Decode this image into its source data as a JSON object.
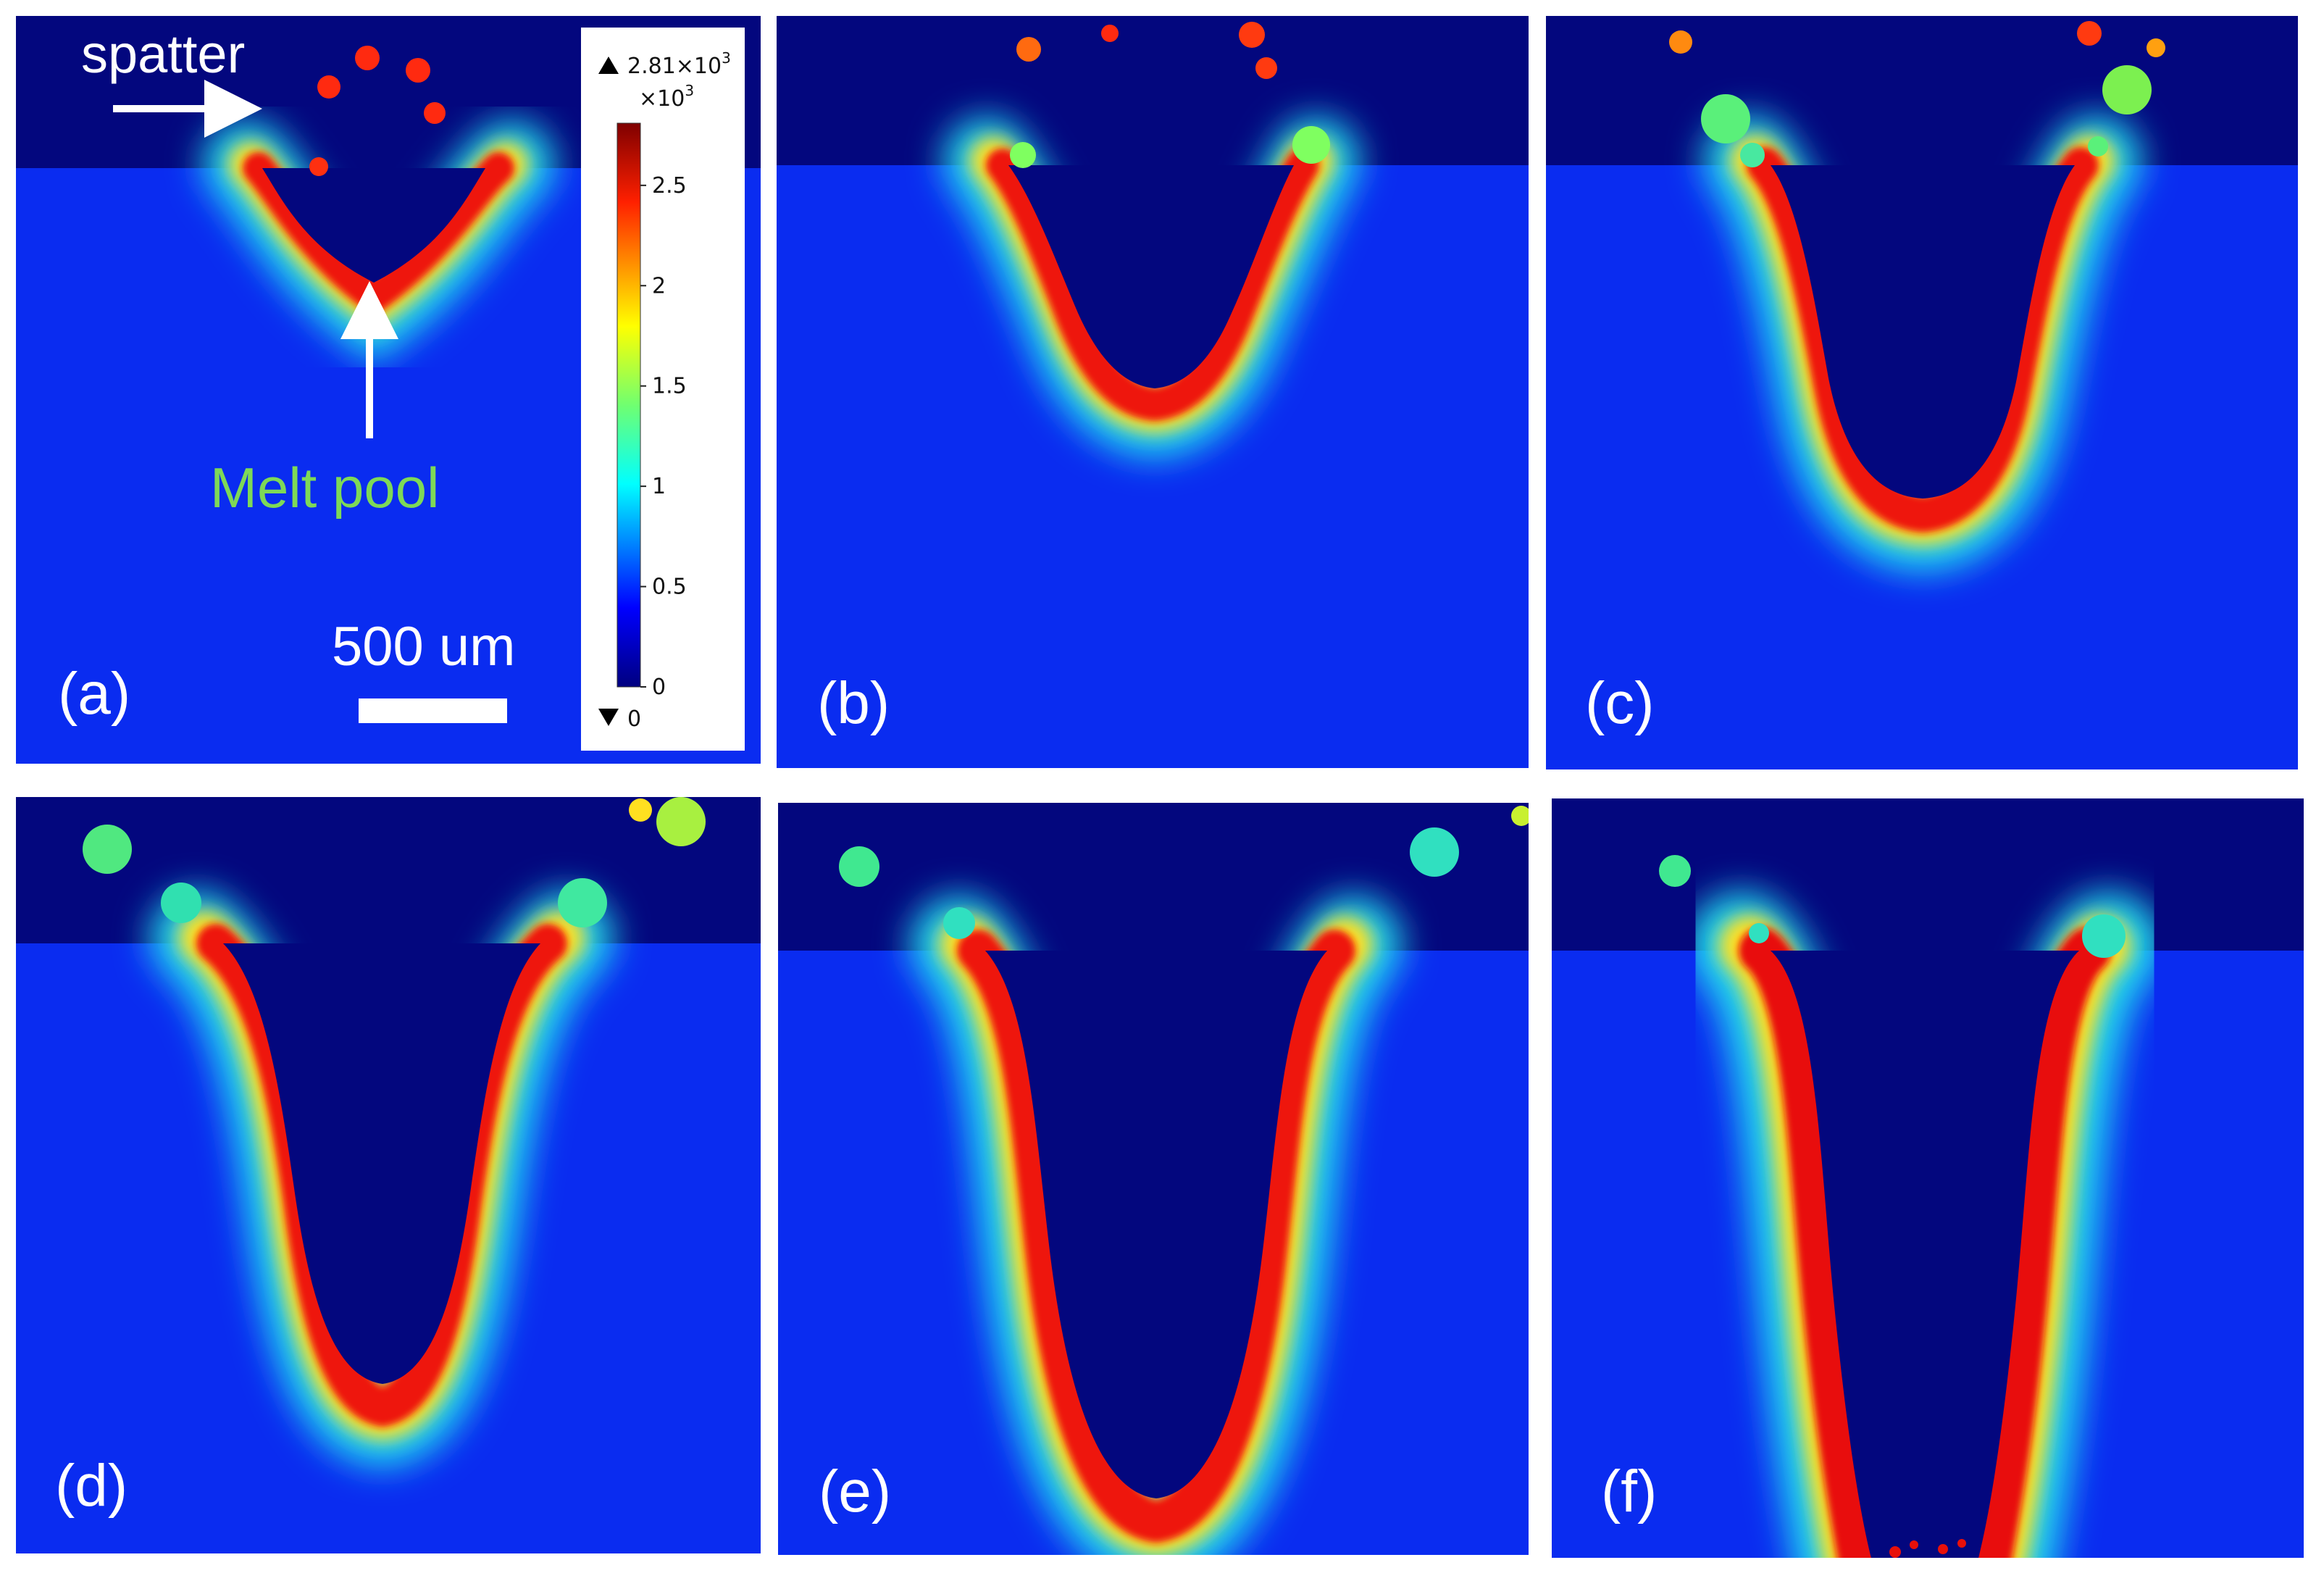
{
  "figure": {
    "panels": [
      {
        "label": "(a)"
      },
      {
        "label": "(b)"
      },
      {
        "label": "(c)"
      },
      {
        "label": "(d)"
      },
      {
        "label": "(e)"
      },
      {
        "label": "(f)"
      }
    ],
    "annotations": {
      "spatter": "spatter",
      "melt_pool": "Melt pool",
      "scale_bar": "500 um"
    },
    "colorbar": {
      "max_marker": "2.81×10",
      "max_exp": "3",
      "multiplier": "×10",
      "multiplier_exp": "3",
      "ticks": [
        "2.5",
        "2",
        "1.5",
        "1",
        "0.5",
        "0"
      ],
      "min_marker": "0"
    },
    "colors": {
      "background_blue": "#0a2cf0",
      "gas_dark": "#03077e",
      "hot_red": "#e8100a",
      "melt_pool_label": "#7ed957"
    }
  }
}
